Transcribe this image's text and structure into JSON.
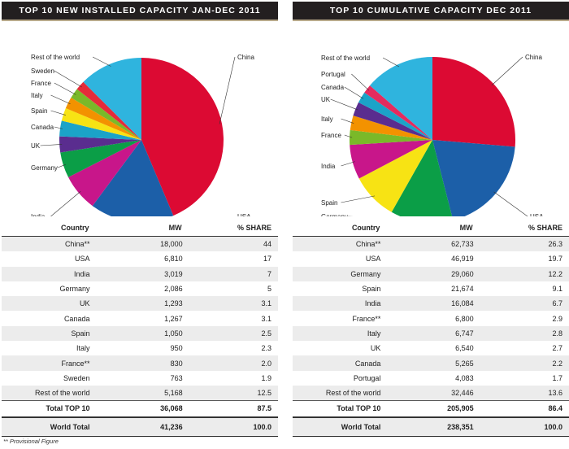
{
  "chart_data": [
    {
      "type": "pie",
      "title": "TOP 10 NEW INSTALLED CAPACITY JAN-DEC 2011",
      "categories": [
        "China",
        "USA",
        "India",
        "Germany",
        "UK",
        "Canada",
        "Spain",
        "Italy",
        "France",
        "Sweden",
        "Rest of the world"
      ],
      "values": [
        18000,
        6810,
        3019,
        2086,
        1293,
        1267,
        1050,
        950,
        830,
        763,
        5168
      ],
      "colors": [
        "#dc0a33",
        "#1c5fa8",
        "#c8168a",
        "#0b9e47",
        "#5a2d8f",
        "#1ba3c8",
        "#f7e314",
        "#f39200",
        "#7ab929",
        "#e52b3a",
        "#2fb4de"
      ]
    },
    {
      "type": "pie",
      "title": "TOP 10 CUMULATIVE CAPACITY DEC 2011",
      "categories": [
        "China",
        "USA",
        "Germany",
        "Spain",
        "India",
        "France",
        "Italy",
        "UK",
        "Canada",
        "Portugal",
        "Rest of the world"
      ],
      "values": [
        62733,
        46919,
        29060,
        21674,
        16084,
        6800,
        6747,
        6540,
        5265,
        4083,
        32446
      ],
      "colors": [
        "#dc0a33",
        "#1c5fa8",
        "#0b9e47",
        "#f7e314",
        "#c8168a",
        "#7ab929",
        "#f39200",
        "#5a2d8f",
        "#1ba3c8",
        "#e52b5e",
        "#2fb4de"
      ]
    }
  ],
  "tables": [
    {
      "headers": [
        "Country",
        "MW",
        "% SHARE"
      ],
      "rows": [
        [
          "China**",
          "18,000",
          "44"
        ],
        [
          "USA",
          "6,810",
          "17"
        ],
        [
          "India",
          "3,019",
          "7"
        ],
        [
          "Germany",
          "2,086",
          "5"
        ],
        [
          "UK",
          "1,293",
          "3.1"
        ],
        [
          "Canada",
          "1,267",
          "3.1"
        ],
        [
          "Spain",
          "1,050",
          "2.5"
        ],
        [
          "Italy",
          "950",
          "2.3"
        ],
        [
          "France**",
          "830",
          "2.0"
        ],
        [
          "Sweden",
          "763",
          "1.9"
        ],
        [
          "Rest of the world",
          "5,168",
          "12.5"
        ]
      ],
      "total_top10": [
        "Total TOP 10",
        "36,068",
        "87.5"
      ],
      "world_total": [
        "World Total",
        "41,236",
        "100.0"
      ]
    },
    {
      "headers": [
        "Country",
        "MW",
        "% SHARE"
      ],
      "rows": [
        [
          "China**",
          "62,733",
          "26.3"
        ],
        [
          "USA",
          "46,919",
          "19.7"
        ],
        [
          "Germany",
          "29,060",
          "12.2"
        ],
        [
          "Spain",
          "21,674",
          "9.1"
        ],
        [
          "India",
          "16,084",
          "6.7"
        ],
        [
          "France**",
          "6,800",
          "2.9"
        ],
        [
          "Italy",
          "6,747",
          "2.8"
        ],
        [
          "UK",
          "6,540",
          "2.7"
        ],
        [
          "Canada",
          "5,265",
          "2.2"
        ],
        [
          "Portugal",
          "4,083",
          "1.7"
        ],
        [
          "Rest of the world",
          "32,446",
          "13.6"
        ]
      ],
      "total_top10": [
        "Total TOP 10",
        "205,905",
        "86.4"
      ],
      "world_total": [
        "World Total",
        "238,351",
        "100.0"
      ]
    }
  ],
  "footnote": "** Provisional Figure"
}
